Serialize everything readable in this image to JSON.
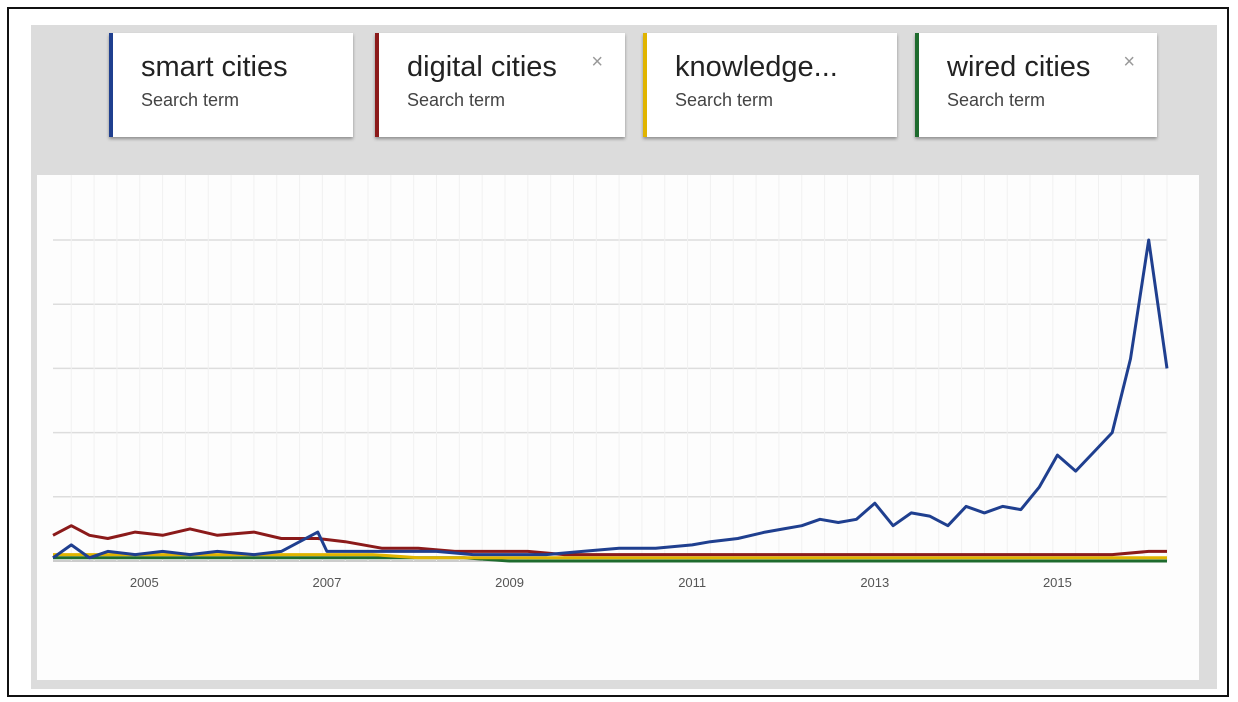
{
  "terms": [
    {
      "name": "smart cities",
      "sub": "Search term",
      "color": "#1f3f8f",
      "closable": false
    },
    {
      "name": "digital cities",
      "sub": "Search term",
      "color": "#8b1a1a",
      "closable": true
    },
    {
      "name": "knowledge...",
      "sub": "Search term",
      "color": "#e0b400",
      "closable": false
    },
    {
      "name": "wired cities",
      "sub": "Search term",
      "color": "#1e6b2e",
      "closable": true
    }
  ],
  "close_glyph": "×",
  "chart_data": {
    "type": "line",
    "xlabel": "",
    "ylabel": "",
    "xlim": [
      2004,
      2016.2
    ],
    "ylim": [
      0,
      100
    ],
    "xticks": [
      "2005",
      "2007",
      "2009",
      "2011",
      "2013",
      "2015"
    ],
    "grid": true,
    "series": [
      {
        "name": "smart cities",
        "color": "#1f3f8f",
        "points": [
          [
            2004.0,
            1
          ],
          [
            2004.2,
            5
          ],
          [
            2004.4,
            1
          ],
          [
            2004.6,
            3
          ],
          [
            2004.9,
            2
          ],
          [
            2005.2,
            3
          ],
          [
            2005.5,
            2
          ],
          [
            2005.8,
            3
          ],
          [
            2006.2,
            2
          ],
          [
            2006.5,
            3
          ],
          [
            2006.9,
            9
          ],
          [
            2007.0,
            3
          ],
          [
            2007.4,
            3
          ],
          [
            2007.8,
            3
          ],
          [
            2008.2,
            3
          ],
          [
            2008.6,
            2
          ],
          [
            2009.0,
            2
          ],
          [
            2009.4,
            2
          ],
          [
            2009.8,
            3
          ],
          [
            2010.2,
            4
          ],
          [
            2010.6,
            4
          ],
          [
            2011.0,
            5
          ],
          [
            2011.2,
            6
          ],
          [
            2011.5,
            7
          ],
          [
            2011.8,
            9
          ],
          [
            2012.0,
            10
          ],
          [
            2012.2,
            11
          ],
          [
            2012.4,
            13
          ],
          [
            2012.6,
            12
          ],
          [
            2012.8,
            13
          ],
          [
            2013.0,
            18
          ],
          [
            2013.2,
            11
          ],
          [
            2013.4,
            15
          ],
          [
            2013.6,
            14
          ],
          [
            2013.8,
            11
          ],
          [
            2014.0,
            17
          ],
          [
            2014.2,
            15
          ],
          [
            2014.4,
            17
          ],
          [
            2014.6,
            16
          ],
          [
            2014.8,
            23
          ],
          [
            2015.0,
            33
          ],
          [
            2015.2,
            28
          ],
          [
            2015.4,
            34
          ],
          [
            2015.6,
            40
          ],
          [
            2015.8,
            63
          ],
          [
            2016.0,
            100
          ],
          [
            2016.2,
            60
          ]
        ]
      },
      {
        "name": "digital cities",
        "color": "#8b1a1a",
        "points": [
          [
            2004.0,
            8
          ],
          [
            2004.2,
            11
          ],
          [
            2004.4,
            8
          ],
          [
            2004.6,
            7
          ],
          [
            2004.9,
            9
          ],
          [
            2005.2,
            8
          ],
          [
            2005.5,
            10
          ],
          [
            2005.8,
            8
          ],
          [
            2006.2,
            9
          ],
          [
            2006.5,
            7
          ],
          [
            2006.9,
            7
          ],
          [
            2007.2,
            6
          ],
          [
            2007.6,
            4
          ],
          [
            2008.0,
            4
          ],
          [
            2008.4,
            3
          ],
          [
            2008.8,
            3
          ],
          [
            2009.2,
            3
          ],
          [
            2009.6,
            2
          ],
          [
            2010.0,
            2
          ],
          [
            2010.4,
            2
          ],
          [
            2010.8,
            2
          ],
          [
            2011.2,
            2
          ],
          [
            2011.6,
            2
          ],
          [
            2012.0,
            2
          ],
          [
            2012.4,
            2
          ],
          [
            2012.8,
            2
          ],
          [
            2013.2,
            2
          ],
          [
            2013.6,
            2
          ],
          [
            2014.0,
            2
          ],
          [
            2014.4,
            2
          ],
          [
            2014.8,
            2
          ],
          [
            2015.2,
            2
          ],
          [
            2015.6,
            2
          ],
          [
            2016.0,
            3
          ],
          [
            2016.2,
            3
          ]
        ]
      },
      {
        "name": "knowledge...",
        "color": "#e0b400",
        "points": [
          [
            2004.0,
            2
          ],
          [
            2004.5,
            2
          ],
          [
            2005.0,
            2
          ],
          [
            2005.5,
            2
          ],
          [
            2006.0,
            2
          ],
          [
            2006.5,
            2
          ],
          [
            2007.0,
            2
          ],
          [
            2007.5,
            2
          ],
          [
            2008.0,
            1
          ],
          [
            2008.5,
            1
          ],
          [
            2009.0,
            1
          ],
          [
            2009.5,
            1
          ],
          [
            2010.0,
            1
          ],
          [
            2010.5,
            1
          ],
          [
            2011.0,
            1
          ],
          [
            2011.5,
            1
          ],
          [
            2012.0,
            1
          ],
          [
            2012.5,
            1
          ],
          [
            2013.0,
            1
          ],
          [
            2013.5,
            1
          ],
          [
            2014.0,
            1
          ],
          [
            2014.5,
            1
          ],
          [
            2015.0,
            1
          ],
          [
            2015.5,
            1
          ],
          [
            2016.0,
            1
          ],
          [
            2016.2,
            1
          ]
        ]
      },
      {
        "name": "wired cities",
        "color": "#1e6b2e",
        "points": [
          [
            2004.0,
            1
          ],
          [
            2004.5,
            1
          ],
          [
            2005.0,
            1
          ],
          [
            2005.5,
            1
          ],
          [
            2006.0,
            1
          ],
          [
            2006.5,
            1
          ],
          [
            2007.0,
            1
          ],
          [
            2007.5,
            1
          ],
          [
            2008.0,
            1
          ],
          [
            2008.5,
            1
          ],
          [
            2009.0,
            0
          ],
          [
            2009.5,
            0
          ],
          [
            2010.0,
            0
          ],
          [
            2010.5,
            0
          ],
          [
            2011.0,
            0
          ],
          [
            2011.5,
            0
          ],
          [
            2012.0,
            0
          ],
          [
            2012.5,
            0
          ],
          [
            2013.0,
            0
          ],
          [
            2013.5,
            0
          ],
          [
            2014.0,
            0
          ],
          [
            2014.5,
            0
          ],
          [
            2015.0,
            0
          ],
          [
            2015.5,
            0
          ],
          [
            2016.0,
            0
          ],
          [
            2016.2,
            0
          ]
        ]
      }
    ]
  }
}
